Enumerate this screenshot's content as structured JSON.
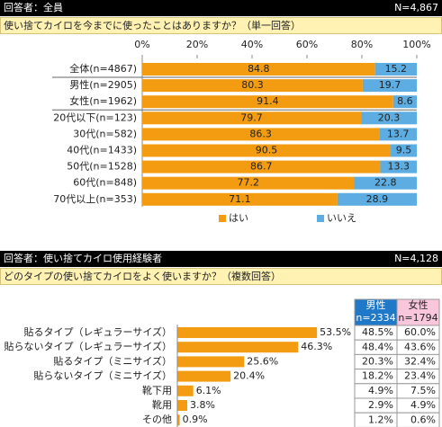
{
  "sections": [
    {
      "respondents": "回答者：全員",
      "n": "N=4,867",
      "question": "使い捨てカイロを今までに使ったことはありますか？（単一回答）"
    },
    {
      "respondents": "回答者：使い捨てカイロ使用経験者",
      "n": "N=4,128",
      "question": "どのタイプの使い捨てカイロをよく使いますか？（複数回答）"
    }
  ],
  "chart_data": [
    {
      "type": "stacked_bar",
      "orientation": "horizontal",
      "categories": [
        "全体(n=4867)",
        "男性(n=2905)",
        "女性(n=1962)",
        "20代以下(n=123)",
        "30代(n=582)",
        "40代(n=1433)",
        "50代(n=1528)",
        "60代(n=848)",
        "70代以上(n=353)"
      ],
      "series": [
        {
          "name": "はい",
          "color": "#f39c12",
          "values": [
            84.8,
            80.3,
            91.4,
            79.7,
            86.3,
            90.5,
            86.7,
            77.2,
            71.1
          ]
        },
        {
          "name": "いいえ",
          "color": "#5dade2",
          "values": [
            15.2,
            19.7,
            8.6,
            20.3,
            13.7,
            9.5,
            13.3,
            22.8,
            28.9
          ]
        }
      ],
      "xlim": [
        0,
        100
      ],
      "xticks": [
        {
          "value": 0,
          "label": "0%"
        },
        {
          "value": 20,
          "label": "20%"
        },
        {
          "value": 40,
          "label": "40%"
        },
        {
          "value": 60,
          "label": "60%"
        },
        {
          "value": 80,
          "label": "80%"
        },
        {
          "value": 100,
          "label": "100%"
        }
      ],
      "legend": "bottom"
    },
    {
      "type": "bar",
      "orientation": "horizontal",
      "color": "#f39c12",
      "categories": [
        "貼るタイプ（レギュラーサイズ）",
        "貼らないタイプ（レギュラーサイズ）",
        "貼るタイプ（ミニサイズ）",
        "貼らないタイプ（ミニサイズ）",
        "靴下用",
        "靴用",
        "その他"
      ],
      "values": [
        53.5,
        46.3,
        25.6,
        20.4,
        6.1,
        3.8,
        0.9
      ],
      "value_labels": [
        "53.5%",
        "46.3%",
        "25.6%",
        "20.4%",
        "6.1%",
        "3.8%",
        "0.9%"
      ]
    }
  ],
  "table": {
    "header": [
      [
        "男性",
        "n=2334"
      ],
      [
        "女性",
        "n=1794"
      ]
    ],
    "rows": [
      [
        "48.5%",
        "60.0%"
      ],
      [
        "48.4%",
        "43.6%"
      ],
      [
        "20.3%",
        "32.4%"
      ],
      [
        "18.2%",
        "23.4%"
      ],
      [
        "4.9%",
        "7.5%"
      ],
      [
        "2.9%",
        "4.9%"
      ],
      [
        "1.2%",
        "0.6%"
      ]
    ]
  }
}
